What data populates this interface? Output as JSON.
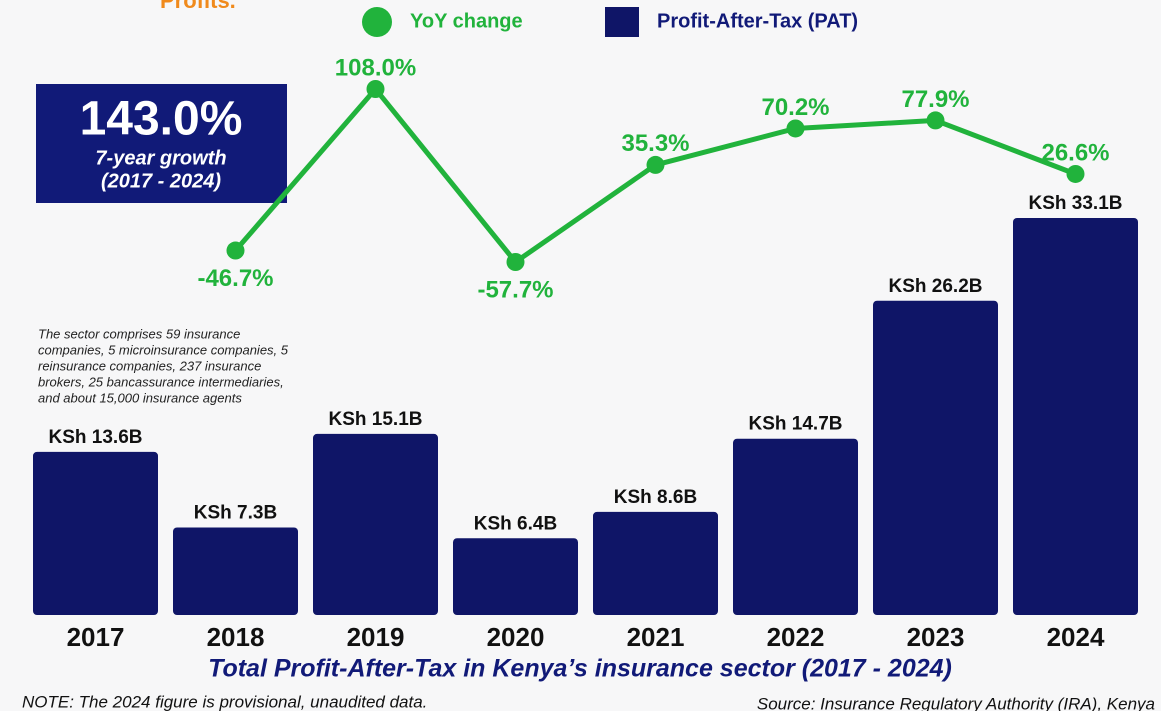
{
  "chart_data": {
    "type": "bar",
    "header_text": "Profits.",
    "title": "Total Profit-After-Tax in Kenya’s insurance sector  (2017 - 2024)",
    "highlight": {
      "value": "143.0%",
      "line1": "7-year growth",
      "line2": "(2017 - 2024)"
    },
    "note_lines": [
      "The sector comprises 59 insurance",
      "companies, 5 microinsurance companies, 5",
      "reinsurance companies, 237 insurance",
      "brokers, 25 bancassurance intermediaries,",
      "and about 15,000 insurance agents"
    ],
    "footnote": "NOTE: The 2024 figure is provisional, unaudited data.",
    "source": "Source: Insurance Regulatory Authority (IRA), Kenya",
    "categories": [
      "2017",
      "2018",
      "2019",
      "2020",
      "2021",
      "2022",
      "2023",
      "2024"
    ],
    "series": [
      {
        "name": "Profit-After-Tax (PAT)",
        "type": "bar",
        "color": "#0f1567",
        "values": [
          13.6,
          7.3,
          15.1,
          6.4,
          8.6,
          14.7,
          26.2,
          33.1
        ],
        "value_labels": [
          "KSh 13.6B",
          "KSh 7.3B",
          "KSh 15.1B",
          "KSh 6.4B",
          "KSh 8.6B",
          "KSh 14.7B",
          "KSh 26.2B",
          "KSh 33.1B"
        ]
      },
      {
        "name": "YoY change",
        "type": "line",
        "axis": "y2",
        "color": "#21b33c",
        "values": [
          null,
          -46.7,
          108.0,
          -57.7,
          35.3,
          70.2,
          77.9,
          26.6
        ],
        "value_labels": [
          null,
          "-46.7%",
          "108.0%",
          "-57.7%",
          "35.3%",
          "70.2%",
          "77.9%",
          "26.6%"
        ]
      }
    ]
  }
}
